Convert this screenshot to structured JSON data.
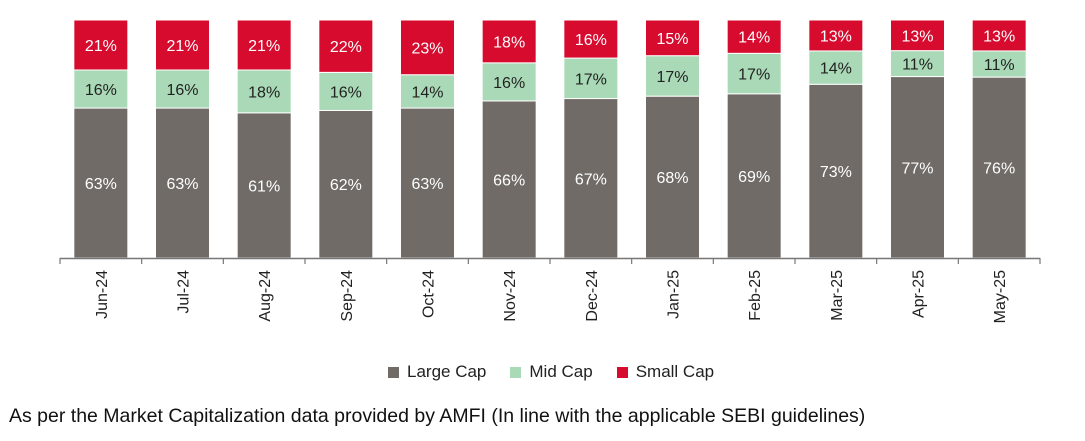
{
  "colors": {
    "large_cap": "#706b67",
    "mid_cap": "#a9d9b6",
    "small_cap": "#d60b2e",
    "axis": "#777777",
    "label_light": "#ffffff",
    "label_dark": "#222222"
  },
  "chart_data": {
    "type": "bar",
    "stacked": true,
    "percent_stacked": true,
    "title": "",
    "xlabel": "",
    "ylabel": "",
    "categories": [
      "Jun-24",
      "Jul-24",
      "Aug-24",
      "Sep-24",
      "Oct-24",
      "Nov-24",
      "Dec-24",
      "Jan-25",
      "Feb-25",
      "Mar-25",
      "Apr-25",
      "May-25"
    ],
    "series": [
      {
        "name": "Large Cap",
        "values": [
          63,
          63,
          61,
          62,
          63,
          66,
          67,
          68,
          69,
          73,
          77,
          76
        ],
        "labels": [
          "63%",
          "63%",
          "61%",
          "62%",
          "63%",
          "66%",
          "67%",
          "68%",
          "69%",
          "73%",
          "77%",
          "76%"
        ]
      },
      {
        "name": "Mid Cap",
        "values": [
          16,
          16,
          18,
          16,
          14,
          16,
          17,
          17,
          17,
          14,
          11,
          11
        ],
        "labels": [
          "16%",
          "16%",
          "18%",
          "16%",
          "14%",
          "16%",
          "17%",
          "17%",
          "17%",
          "14%",
          "11%",
          "11%"
        ]
      },
      {
        "name": "Small Cap",
        "values": [
          21,
          21,
          21,
          22,
          23,
          18,
          16,
          15,
          14,
          13,
          13,
          13
        ],
        "labels": [
          "21%",
          "21%",
          "21%",
          "22%",
          "23%",
          "18%",
          "16%",
          "15%",
          "14%",
          "13%",
          "13%",
          "13%"
        ]
      }
    ],
    "grid": false,
    "legend_position": "bottom-center",
    "x_tick_rotation": "vertical"
  },
  "legend": {
    "large_cap": "Large Cap",
    "mid_cap": "Mid Cap",
    "small_cap": "Small Cap"
  },
  "footnote": "As per the Market Capitalization data provided by AMFI (In line with the applicable SEBI guidelines)"
}
